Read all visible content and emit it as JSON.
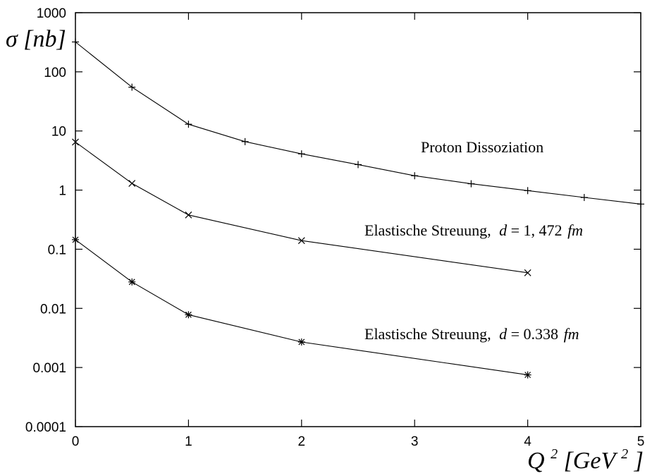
{
  "chart_data": {
    "type": "line",
    "xlabel": "Q^2[GeV^2]",
    "ylabel": "σ[nb]",
    "xlim": [
      0,
      5
    ],
    "ylim": [
      0.0001,
      1000
    ],
    "yscale": "log",
    "grid": false,
    "x_ticks": [
      "0",
      "1",
      "2",
      "3",
      "4",
      "5"
    ],
    "y_ticks": [
      "1000",
      "100",
      "10",
      "1",
      "0.1",
      "0.01",
      "0.001",
      "0.0001"
    ],
    "series": [
      {
        "name": "Proton Dissoziation",
        "marker": "plus",
        "x": [
          0,
          0.5,
          1,
          1.5,
          2,
          2.5,
          3,
          3.5,
          4,
          4.5,
          5
        ],
        "y": [
          320,
          55,
          13,
          6.6,
          4.1,
          2.7,
          1.75,
          1.28,
          0.98,
          0.75,
          0.58
        ]
      },
      {
        "name": "Elastische Streuung, d = 1,472 fm",
        "marker": "cross",
        "x": [
          0,
          0.5,
          1,
          2,
          4
        ],
        "y": [
          6.5,
          1.3,
          0.38,
          0.14,
          0.04
        ]
      },
      {
        "name": "Elastische Streuung, d = 0.338 fm",
        "marker": "star",
        "x": [
          0,
          0.5,
          1,
          2,
          4
        ],
        "y": [
          0.145,
          0.028,
          0.0078,
          0.0027,
          0.00075
        ]
      }
    ]
  },
  "labels": {
    "proton_prefix": "Proton Dissoziation",
    "elastic_prefix": "Elastische Streuung,",
    "d1_var": "d",
    "d1_eq": " = 1, 472",
    "d1_unit": "fm",
    "d2_var": "d",
    "d2_eq": " = 0.338",
    "d2_unit": "fm",
    "ylabel_sigma": "σ",
    "ylabel_unit": "[nb]",
    "xlabel_q": "Q",
    "xlabel_exp": "2",
    "xlabel_open": "[GeV",
    "xlabel_exp2": "2",
    "xlabel_close": "]"
  }
}
